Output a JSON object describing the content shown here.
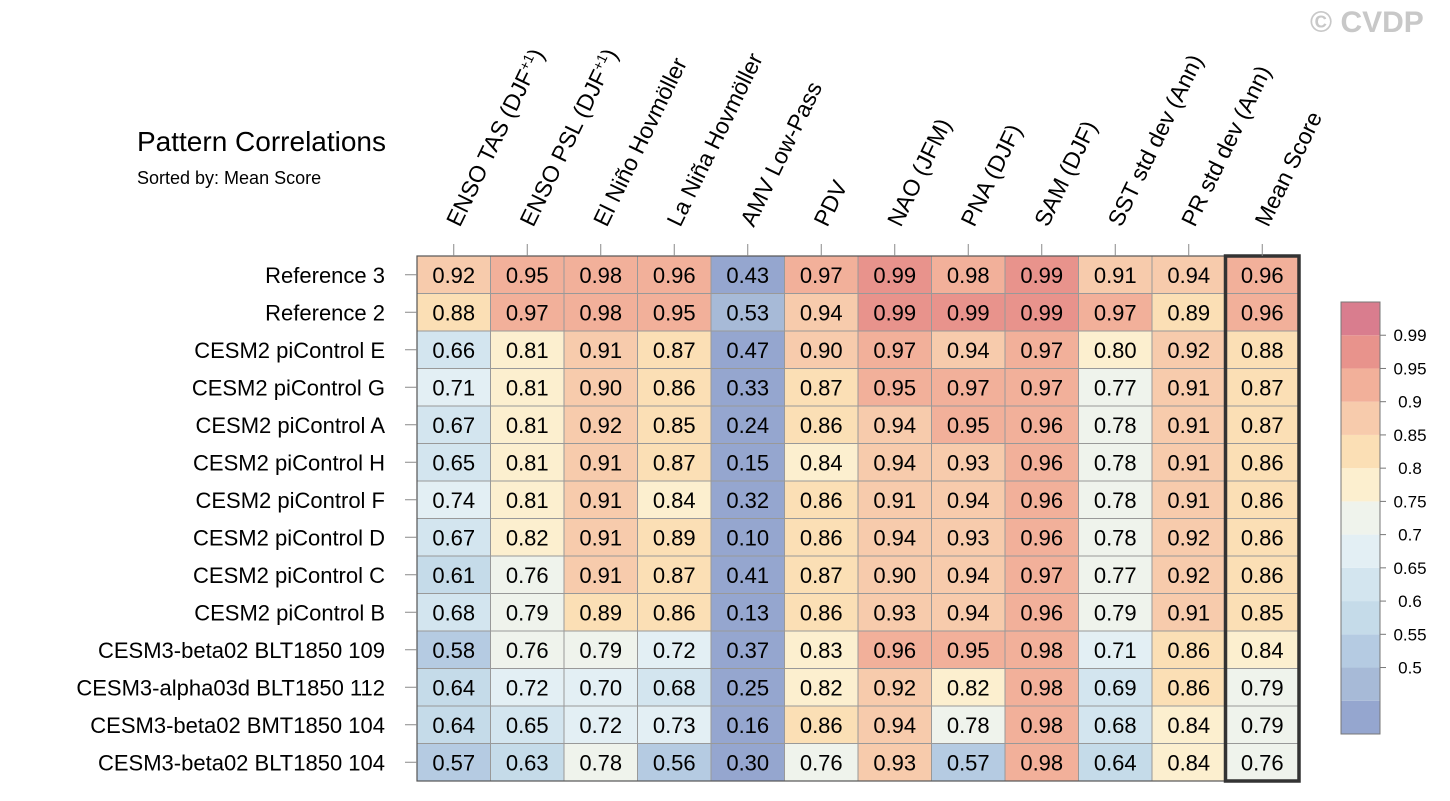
{
  "watermark": "© CVDP",
  "colors": {
    "palette": [
      "#95a6cf",
      "#a7bad7",
      "#b5cbe2",
      "#c5dbe9",
      "#d3e5ef",
      "#e3eff4",
      "#eff3ec",
      "#fcefcf",
      "#fbdfb5",
      "#f7cbac",
      "#f2b09a",
      "#e8938c",
      "#d97d8e"
    ],
    "boundaries": [
      0.5,
      0.55,
      0.6,
      0.65,
      0.7,
      0.75,
      0.8,
      0.85,
      0.9,
      0.95,
      0.99
    ],
    "grid": "#999999",
    "highlight_border": "#333333"
  },
  "chart_data": {
    "type": "heatmap",
    "title": "Pattern Correlations",
    "subtitle": "Sorted by: Mean Score",
    "columns": [
      "ENSO TAS (DJF+1)",
      "ENSO PSL (DJF+1)",
      "El Niño Hovmöller",
      "La Niña Hovmöller",
      "AMV Low-Pass",
      "PDV",
      "NAO (JFM)",
      "PNA (DJF)",
      "SAM (DJF)",
      "SST std dev (Ann)",
      "PR std dev (Ann)",
      "Mean Score"
    ],
    "rows": [
      "Reference 3",
      "Reference 2",
      "CESM2 piControl E",
      "CESM2 piControl G",
      "CESM2 piControl A",
      "CESM2 piControl H",
      "CESM2 piControl F",
      "CESM2 piControl D",
      "CESM2 piControl C",
      "CESM2 piControl B",
      "CESM3-beta02 BLT1850 109",
      "CESM3-alpha03d BLT1850 112",
      "CESM3-beta02 BMT1850 104",
      "CESM3-beta02 BLT1850 104"
    ],
    "values": [
      [
        "0.92",
        "0.95",
        "0.98",
        "0.96",
        "0.43",
        "0.97",
        "0.99",
        "0.98",
        "0.99",
        "0.91",
        "0.94",
        "0.96"
      ],
      [
        "0.88",
        "0.97",
        "0.98",
        "0.95",
        "0.53",
        "0.94",
        "0.99",
        "0.99",
        "0.99",
        "0.97",
        "0.89",
        "0.96"
      ],
      [
        "0.66",
        "0.81",
        "0.91",
        "0.87",
        "0.47",
        "0.90",
        "0.97",
        "0.94",
        "0.97",
        "0.80",
        "0.92",
        "0.88"
      ],
      [
        "0.71",
        "0.81",
        "0.90",
        "0.86",
        "0.33",
        "0.87",
        "0.95",
        "0.97",
        "0.97",
        "0.77",
        "0.91",
        "0.87"
      ],
      [
        "0.67",
        "0.81",
        "0.92",
        "0.85",
        "0.24",
        "0.86",
        "0.94",
        "0.95",
        "0.96",
        "0.78",
        "0.91",
        "0.87"
      ],
      [
        "0.65",
        "0.81",
        "0.91",
        "0.87",
        "0.15",
        "0.84",
        "0.94",
        "0.93",
        "0.96",
        "0.78",
        "0.91",
        "0.86"
      ],
      [
        "0.74",
        "0.81",
        "0.91",
        "0.84",
        "0.32",
        "0.86",
        "0.91",
        "0.94",
        "0.96",
        "0.78",
        "0.91",
        "0.86"
      ],
      [
        "0.67",
        "0.82",
        "0.91",
        "0.89",
        "0.10",
        "0.86",
        "0.94",
        "0.93",
        "0.96",
        "0.78",
        "0.92",
        "0.86"
      ],
      [
        "0.61",
        "0.76",
        "0.91",
        "0.87",
        "0.41",
        "0.87",
        "0.90",
        "0.94",
        "0.97",
        "0.77",
        "0.92",
        "0.86"
      ],
      [
        "0.68",
        "0.79",
        "0.89",
        "0.86",
        "0.13",
        "0.86",
        "0.93",
        "0.94",
        "0.96",
        "0.79",
        "0.91",
        "0.85"
      ],
      [
        "0.58",
        "0.76",
        "0.79",
        "0.72",
        "0.37",
        "0.83",
        "0.96",
        "0.95",
        "0.98",
        "0.71",
        "0.86",
        "0.84"
      ],
      [
        "0.64",
        "0.72",
        "0.70",
        "0.68",
        "0.25",
        "0.82",
        "0.92",
        "0.82",
        "0.98",
        "0.69",
        "0.86",
        "0.79"
      ],
      [
        "0.64",
        "0.65",
        "0.72",
        "0.73",
        "0.16",
        "0.86",
        "0.94",
        "0.78",
        "0.98",
        "0.68",
        "0.84",
        "0.79"
      ],
      [
        "0.57",
        "0.63",
        "0.78",
        "0.56",
        "0.30",
        "0.76",
        "0.93",
        "0.57",
        "0.98",
        "0.64",
        "0.84",
        "0.76"
      ]
    ],
    "colorbar_labels": [
      "0.99",
      "0.95",
      "0.9",
      "0.85",
      "0.8",
      "0.75",
      "0.7",
      "0.65",
      "0.6",
      "0.55",
      "0.5"
    ],
    "highlighted_column": "Mean Score"
  }
}
